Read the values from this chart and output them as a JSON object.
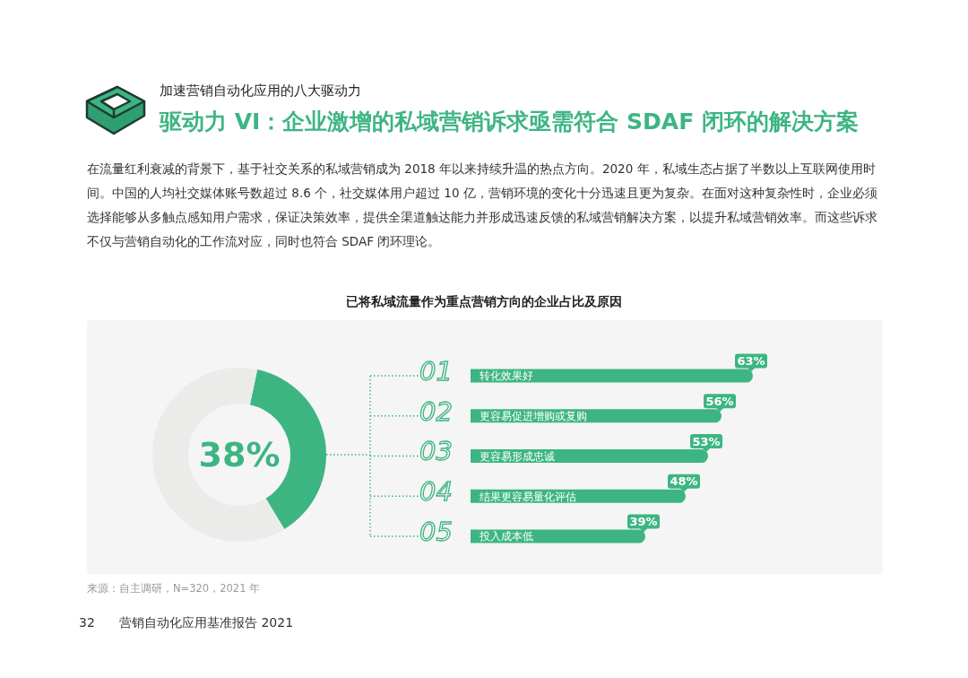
{
  "chart_data": [
    {
      "type": "donut",
      "categories": [
        null,
        null
      ],
      "values": [
        38,
        62
      ],
      "colors": [
        "#3db583",
        "#ebebea"
      ],
      "value_labels": [
        "38%",
        null
      ],
      "annotations": [
        "加速营销自动化应用的八大驱动力",
        "驱动力 VI：企业激增的私域营销诉求亟需符合 SDAF 闭环的解决方案",
        "在流量红利衰减的背景下，基于社交关系的私域营销成为 2018 年以来持续升温的热点方向。2020 年，私域生态占据了半数以上互联网使用时间。中国的人均社交媒体账号数超过 8.6 个，社交媒体用户超过 10 亿，营销环境的变化十分迅速且更为复杂。在面对这种复杂性时，企业必须选择能够从多触点感知用户需求，保证决策效率，提供全渠道触达能力并形成迅速反馈的私域营销解决方案，以提升私域营销效率。而这些诉求不仅与营销自动化的工作流对应，同时也符合 SDAF 闭环理论。",
        "来源：自主调研，N=320，2021 年",
        "32",
        "营销自动化应用基准报告 2021"
      ]
    },
    {
      "type": "bar",
      "title": "已将私域流量作为重点营销方向的企业占比及原因",
      "orientation": "horizontal",
      "categories": [
        "转化效果好",
        "更容易促进增购或复购",
        "更容易形成忠诚",
        "结果更容易量化评估",
        "投入成本低"
      ],
      "values": [
        63,
        56,
        53,
        48,
        39
      ],
      "color": "#3db583",
      "value_labels": [
        "63%",
        "56%",
        "53%",
        "48%",
        "39%"
      ],
      "annotations": [
        "01",
        "02",
        "03",
        "04",
        "05"
      ]
    }
  ]
}
